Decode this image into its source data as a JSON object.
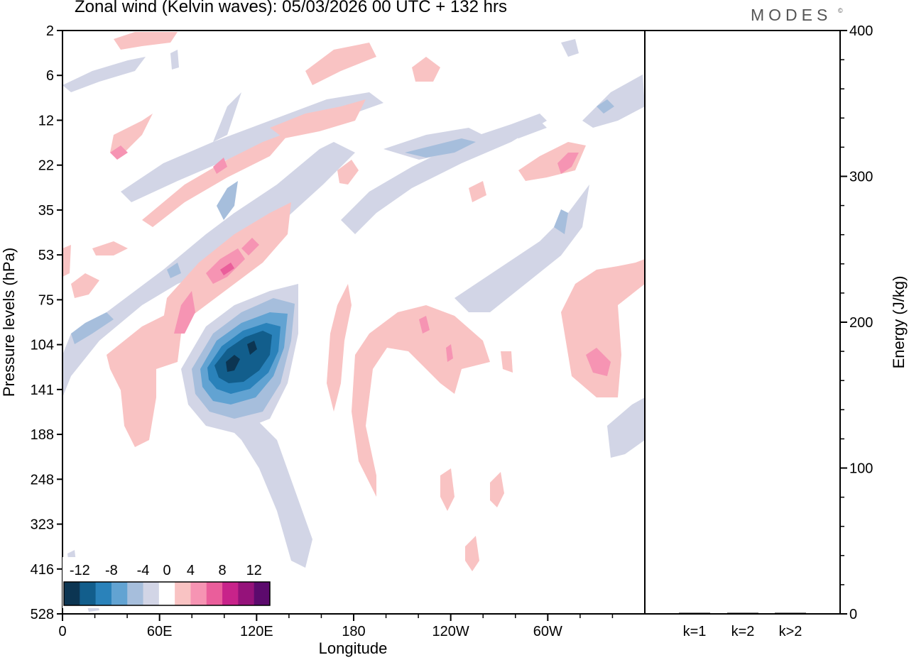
{
  "title": "Zonal wind (Kelvin waves):  05/03/2026  00 UTC  + 132 hrs",
  "brand": "MODES",
  "brand_mark": "©",
  "chart_data": [
    {
      "type": "heatmap",
      "title": "Zonal wind (Kelvin waves):  05/03/2026  00 UTC  + 132 hrs",
      "xlabel": "Longitude",
      "ylabel": "Pressure levels (hPa)",
      "x_ticks": [
        "0",
        "60E",
        "120E",
        "180",
        "120W",
        "60W"
      ],
      "y_ticks": [
        "2",
        "6",
        "12",
        "22",
        "35",
        "53",
        "75",
        "104",
        "141",
        "188",
        "248",
        "323",
        "416",
        "528"
      ],
      "colorbar": {
        "labels": [
          "-12",
          "-8",
          "-4",
          "0",
          "4",
          "8",
          "12"
        ],
        "levels": [
          -14,
          -12,
          -10,
          -8,
          -6,
          -4,
          -2,
          2,
          4,
          6,
          8,
          10,
          12,
          14
        ],
        "colors": [
          "#0c3552",
          "#125e8c",
          "#2a82ba",
          "#62a3d2",
          "#a6bedc",
          "#d2d5e6",
          "#ffffff",
          "#f9c3c3",
          "#f694b3",
          "#ea5e9b",
          "#c8238a",
          "#95127a",
          "#5c0a6d"
        ]
      },
      "features": [
        {
          "sign": "negative",
          "lon_center": 110,
          "level_center": 125,
          "peak": -14
        },
        {
          "sign": "positive",
          "lon_center": 95,
          "level_center": 55,
          "peak": 7
        },
        {
          "sign": "positive",
          "lon_center": 60,
          "level_center": 85,
          "peak": 5
        },
        {
          "sign": "positive",
          "lon_center": 225,
          "level_center": 110,
          "peak": 5
        },
        {
          "sign": "positive",
          "lon_center": 320,
          "level_center": 125,
          "peak": 6
        },
        {
          "sign": "negative",
          "lon_center": 200,
          "level_center": 22,
          "peak": -5
        }
      ]
    },
    {
      "type": "bar",
      "categories": [
        "k=1",
        "k=2",
        "k>2"
      ],
      "values": [
        0,
        0,
        0
      ],
      "ylabel": "Energy (J/kg)",
      "ylim": [
        0,
        400
      ],
      "y_ticks": [
        "0",
        "100",
        "200",
        "300",
        "400"
      ]
    }
  ]
}
